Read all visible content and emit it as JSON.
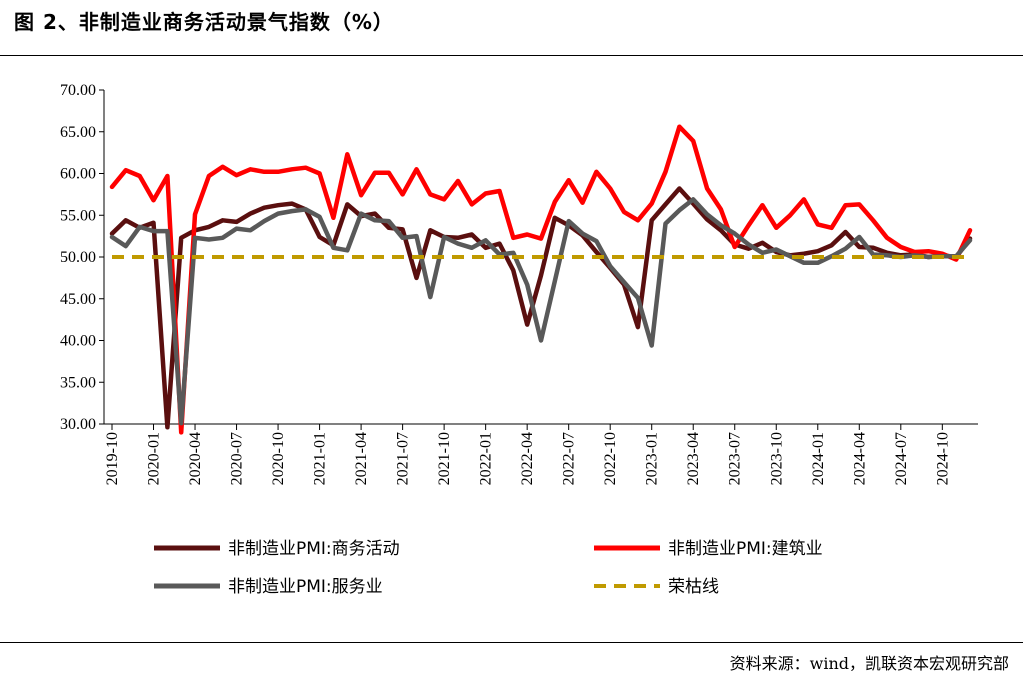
{
  "header": {
    "title": "图 2、非制造业商务活动景气指数（%）"
  },
  "footer": {
    "source": "资料来源：wind，凯联资本宏观研究部"
  },
  "chart_data": {
    "type": "line",
    "title": "图 2、非制造业商务活动景气指数（%）",
    "xlabel": "",
    "ylabel": "",
    "ylim": [
      30,
      70
    ],
    "yticks": [
      "70.00",
      "65.00",
      "60.00",
      "55.00",
      "50.00",
      "45.00",
      "40.00",
      "35.00",
      "30.00"
    ],
    "x": [
      "2019-10",
      "2019-11",
      "2019-12",
      "2020-01",
      "2020-02",
      "2020-03",
      "2020-04",
      "2020-05",
      "2020-06",
      "2020-07",
      "2020-08",
      "2020-09",
      "2020-10",
      "2020-11",
      "2020-12",
      "2021-01",
      "2021-02",
      "2021-03",
      "2021-04",
      "2021-05",
      "2021-06",
      "2021-07",
      "2021-08",
      "2021-09",
      "2021-10",
      "2021-11",
      "2021-12",
      "2022-01",
      "2022-02",
      "2022-03",
      "2022-04",
      "2022-05",
      "2022-06",
      "2022-07",
      "2022-08",
      "2022-09",
      "2022-10",
      "2022-11",
      "2022-12",
      "2023-01",
      "2023-02",
      "2023-03",
      "2023-04",
      "2023-05",
      "2023-06",
      "2023-07",
      "2023-08",
      "2023-09",
      "2023-10",
      "2023-11",
      "2023-12",
      "2024-01",
      "2024-02",
      "2024-03",
      "2024-04",
      "2024-05",
      "2024-06",
      "2024-07",
      "2024-08",
      "2024-09",
      "2024-10",
      "2024-11",
      "2024-12"
    ],
    "xticks": [
      "2019-10",
      "2020-01",
      "2020-04",
      "2020-07",
      "2020-10",
      "2021-01",
      "2021-04",
      "2021-07",
      "2021-10",
      "2022-01",
      "2022-04",
      "2022-07",
      "2022-10",
      "2023-01",
      "2023-04",
      "2023-07",
      "2023-10",
      "2024-01",
      "2024-04",
      "2024-07",
      "2024-10"
    ],
    "grid": false,
    "legend": "bottom",
    "series": [
      {
        "name": "非制造业PMI:商务活动",
        "color": "#5a0f0f",
        "values": [
          52.8,
          54.4,
          53.5,
          54.1,
          29.6,
          52.3,
          53.2,
          53.6,
          54.4,
          54.2,
          55.2,
          55.9,
          56.2,
          56.4,
          55.7,
          52.4,
          51.4,
          56.3,
          54.9,
          55.2,
          53.5,
          53.3,
          47.5,
          53.2,
          52.4,
          52.3,
          52.7,
          51.1,
          51.6,
          48.4,
          41.9,
          47.8,
          54.7,
          53.8,
          52.6,
          50.6,
          48.7,
          46.7,
          41.6,
          54.4,
          56.3,
          58.2,
          56.4,
          54.5,
          53.2,
          51.5,
          51.0,
          51.7,
          50.6,
          50.2,
          50.4,
          50.7,
          51.4,
          53.0,
          51.2,
          51.1,
          50.5,
          50.2,
          50.3,
          50.0,
          50.2,
          50.0,
          52.2
        ]
      },
      {
        "name": "非制造业PMI:建筑业",
        "color": "#ff0000",
        "values": [
          58.4,
          60.4,
          59.7,
          56.8,
          59.7,
          29.0,
          55.1,
          59.7,
          60.8,
          59.8,
          60.5,
          60.2,
          60.2,
          60.5,
          60.7,
          60.0,
          54.7,
          62.3,
          57.4,
          60.1,
          60.1,
          57.5,
          60.5,
          57.5,
          56.9,
          59.1,
          56.3,
          57.6,
          57.9,
          52.3,
          52.7,
          52.2,
          56.6,
          59.2,
          56.5,
          60.2,
          58.2,
          55.4,
          54.4,
          56.4,
          60.2,
          65.6,
          63.9,
          58.2,
          55.7,
          51.2,
          53.8,
          56.2,
          53.5,
          55.0,
          56.9,
          53.9,
          53.5,
          56.2,
          56.3,
          54.4,
          52.3,
          51.2,
          50.6,
          50.7,
          50.4,
          49.7,
          53.2
        ]
      },
      {
        "name": "非制造业PMI:服务业",
        "color": "#595959",
        "values": [
          52.4,
          51.3,
          53.6,
          53.1,
          53.1,
          30.1,
          52.3,
          52.1,
          52.3,
          53.4,
          53.2,
          54.3,
          55.2,
          55.5,
          55.7,
          54.8,
          51.1,
          50.8,
          55.2,
          54.4,
          54.3,
          52.3,
          52.5,
          45.2,
          52.4,
          51.6,
          51.1,
          52.0,
          50.3,
          50.5,
          46.7,
          40.0,
          47.1,
          54.3,
          52.8,
          51.9,
          48.9,
          47.0,
          45.1,
          39.4,
          54.0,
          55.6,
          56.9,
          55.1,
          53.8,
          52.8,
          51.5,
          50.5,
          50.9,
          50.1,
          49.3,
          49.3,
          50.1,
          51.0,
          52.4,
          50.3,
          50.2,
          50.0,
          50.2,
          50.0,
          50.1,
          50.1,
          52.0
        ]
      },
      {
        "name": "荣枯线",
        "color": "#c09a00",
        "dashed": true,
        "values": [
          50,
          50,
          50,
          50,
          50,
          50,
          50,
          50,
          50,
          50,
          50,
          50,
          50,
          50,
          50,
          50,
          50,
          50,
          50,
          50,
          50,
          50,
          50,
          50,
          50,
          50,
          50,
          50,
          50,
          50,
          50,
          50,
          50,
          50,
          50,
          50,
          50,
          50,
          50,
          50,
          50,
          50,
          50,
          50,
          50,
          50,
          50,
          50,
          50,
          50,
          50,
          50,
          50,
          50,
          50,
          50,
          50,
          50,
          50,
          50,
          50,
          50,
          50
        ]
      }
    ]
  }
}
